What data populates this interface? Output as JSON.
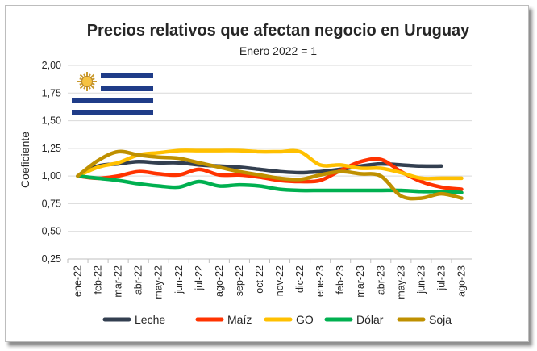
{
  "chart_data": {
    "type": "line",
    "title": "Precios relativos que afectan negocio en Uruguay",
    "subtitle": "Enero 2022 = 1",
    "ylabel": "Coeficiente",
    "xlabel": "",
    "ylim": [
      0.25,
      2.0
    ],
    "yticks": [
      "0,25",
      "0,50",
      "0,75",
      "1,00",
      "1,25",
      "1,50",
      "1,75",
      "2,00"
    ],
    "ytick_values": [
      0.25,
      0.5,
      0.75,
      1.0,
      1.25,
      1.5,
      1.75,
      2.0
    ],
    "categories": [
      "ene-22",
      "feb-22",
      "mar-22",
      "abr-22",
      "may-22",
      "jun-22",
      "jul-22",
      "ago-22",
      "sep-22",
      "oct-22",
      "nov-22",
      "dic-22",
      "ene-23",
      "feb-23",
      "mar-23",
      "abr-23",
      "may-23",
      "jun-23",
      "jul-23",
      "ago-23"
    ],
    "grid": true,
    "legend_position": "bottom",
    "series": [
      {
        "name": "Leche",
        "color": "#333f50",
        "values": [
          1.0,
          1.09,
          1.11,
          1.13,
          1.12,
          1.12,
          1.1,
          1.09,
          1.08,
          1.06,
          1.04,
          1.03,
          1.04,
          1.06,
          1.09,
          1.11,
          1.1,
          1.09,
          1.09,
          null
        ]
      },
      {
        "name": "Maíz",
        "color": "#ff3300",
        "values": [
          1.0,
          0.98,
          1.0,
          1.04,
          1.02,
          1.01,
          1.06,
          1.01,
          1.01,
          0.99,
          0.96,
          0.95,
          0.96,
          1.05,
          1.13,
          1.15,
          1.04,
          0.95,
          0.9,
          0.88
        ]
      },
      {
        "name": "GO",
        "color": "#ffc000",
        "values": [
          1.0,
          1.08,
          1.12,
          1.19,
          1.21,
          1.23,
          1.23,
          1.23,
          1.23,
          1.22,
          1.22,
          1.22,
          1.1,
          1.1,
          1.07,
          1.07,
          1.03,
          0.98,
          0.98,
          0.98
        ]
      },
      {
        "name": "Dólar",
        "color": "#00b050",
        "values": [
          1.0,
          0.98,
          0.96,
          0.93,
          0.91,
          0.9,
          0.95,
          0.91,
          0.92,
          0.91,
          0.88,
          0.87,
          0.87,
          0.87,
          0.87,
          0.87,
          0.87,
          0.86,
          0.86,
          0.85
        ]
      },
      {
        "name": "Soja",
        "color": "#bf9000",
        "values": [
          1.0,
          1.14,
          1.22,
          1.19,
          1.17,
          1.16,
          1.12,
          1.08,
          1.04,
          1.01,
          0.98,
          0.97,
          1.01,
          1.04,
          1.02,
          1.0,
          0.82,
          0.8,
          0.84,
          0.8
        ]
      }
    ]
  }
}
